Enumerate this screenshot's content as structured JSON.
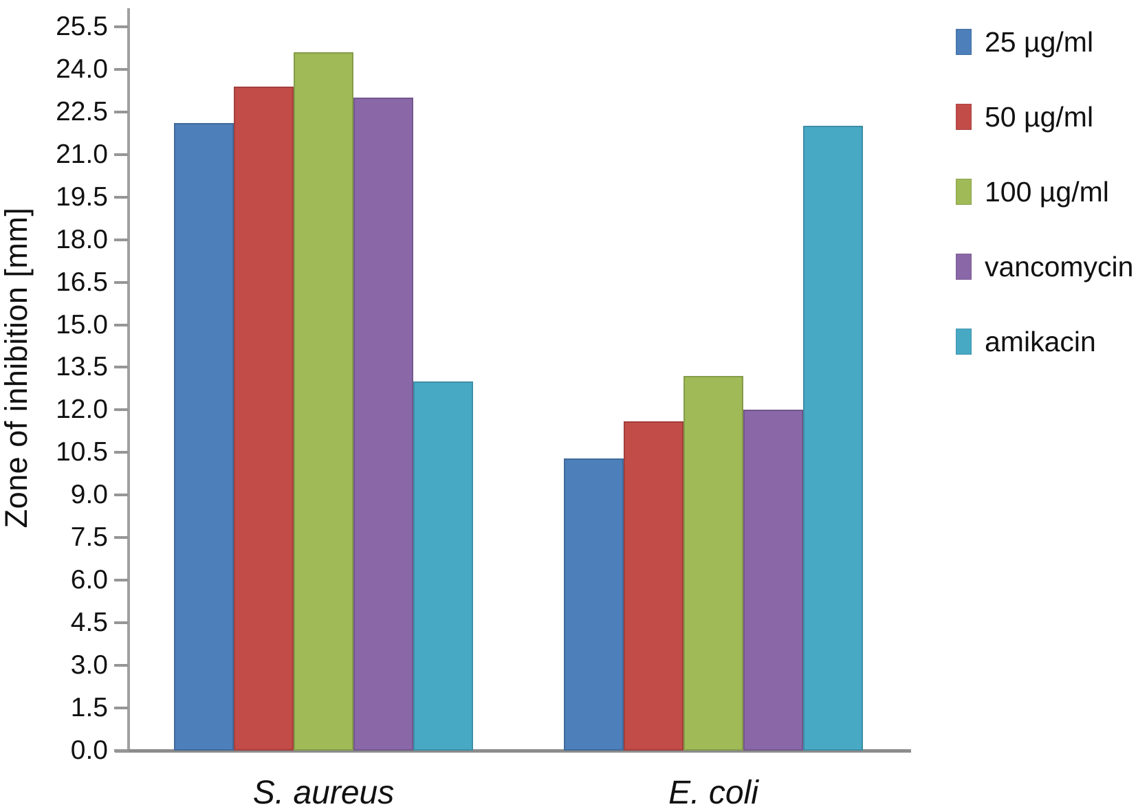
{
  "chart_data": {
    "type": "bar",
    "title": "",
    "xlabel": "",
    "ylabel": "Zone of inhibition [mm]",
    "categories": [
      "S. aureus",
      "E. coli"
    ],
    "series": [
      {
        "name": "25 µg/ml",
        "color": "#4d7fba",
        "values": [
          22.1,
          10.3
        ]
      },
      {
        "name": "50 µg/ml",
        "color": "#c24c48",
        "values": [
          23.4,
          11.6
        ]
      },
      {
        "name": "100 µg/ml",
        "color": "#9fba57",
        "values": [
          24.6,
          13.2
        ]
      },
      {
        "name": "vancomycin",
        "color": "#8a68a8",
        "values": [
          23.0,
          12.0
        ]
      },
      {
        "name": "amikacin",
        "color": "#48a9c5",
        "values": [
          13.0,
          22.0
        ]
      }
    ],
    "ylim": [
      0,
      25.5
    ],
    "ytick_step": 1.5,
    "ytick_labels": [
      "0.0",
      "1.5",
      "3.0",
      "4.5",
      "6.0",
      "7.5",
      "9.0",
      "10.5",
      "12.0",
      "13.5",
      "15.0",
      "16.5",
      "18.0",
      "19.5",
      "21.0",
      "22.5",
      "24.0",
      "25.5"
    ],
    "grid": false,
    "legend_position": "right",
    "axis_colors": {
      "y_axis": "#a0a0a0",
      "x_axis": "#8c8c8c",
      "ticks": "#969696"
    }
  }
}
